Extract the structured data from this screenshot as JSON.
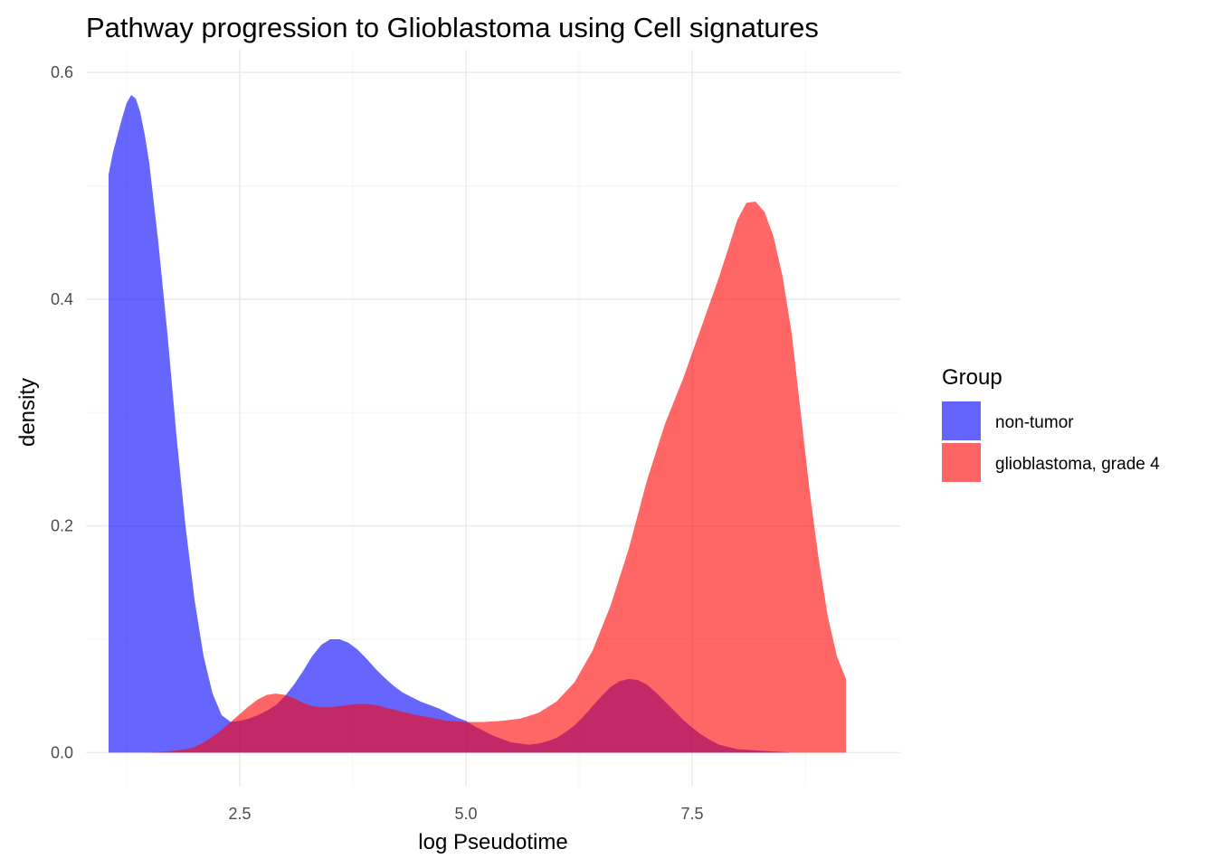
{
  "chart_data": {
    "type": "area",
    "title": "Pathway progression to Glioblastoma using Cell signatures",
    "xlabel": "log Pseudotime",
    "ylabel": "density",
    "xlim": [
      0.8,
      9.8
    ],
    "ylim": [
      -0.03,
      0.62
    ],
    "x_ticks": [
      2.5,
      5.0,
      7.5
    ],
    "x_tick_labels": [
      "2.5",
      "5.0",
      "7.5"
    ],
    "y_ticks": [
      0.0,
      0.2,
      0.4,
      0.6
    ],
    "y_tick_labels": [
      "0.0",
      "0.2",
      "0.4",
      "0.6"
    ],
    "grid": true,
    "legend": {
      "title": "Group",
      "position": "right"
    },
    "series": [
      {
        "name": "non-tumor",
        "color": "#6464FF",
        "x": [
          1.05,
          1.1,
          1.15,
          1.2,
          1.25,
          1.3,
          1.35,
          1.4,
          1.45,
          1.5,
          1.6,
          1.7,
          1.8,
          1.9,
          2.0,
          2.1,
          2.2,
          2.3,
          2.4,
          2.5,
          2.6,
          2.7,
          2.8,
          2.9,
          3.0,
          3.1,
          3.2,
          3.3,
          3.4,
          3.5,
          3.6,
          3.7,
          3.75,
          3.8,
          3.9,
          4.0,
          4.1,
          4.2,
          4.3,
          4.4,
          4.5,
          4.6,
          4.7,
          4.8,
          4.9,
          5.0,
          5.1,
          5.2,
          5.3,
          5.4,
          5.5,
          5.6,
          5.7,
          5.8,
          5.9,
          6.0,
          6.1,
          6.2,
          6.3,
          6.4,
          6.5,
          6.6,
          6.7,
          6.8,
          6.9,
          7.0,
          7.1,
          7.2,
          7.3,
          7.4,
          7.5,
          7.6,
          7.7,
          7.8,
          7.9,
          8.0,
          8.2,
          8.4,
          8.6,
          8.8,
          9.0,
          9.2
        ],
        "values": [
          0.51,
          0.53,
          0.545,
          0.56,
          0.573,
          0.58,
          0.577,
          0.565,
          0.545,
          0.52,
          0.45,
          0.37,
          0.28,
          0.2,
          0.135,
          0.085,
          0.052,
          0.033,
          0.027,
          0.028,
          0.03,
          0.033,
          0.037,
          0.042,
          0.05,
          0.06,
          0.072,
          0.085,
          0.095,
          0.1,
          0.1,
          0.097,
          0.094,
          0.091,
          0.083,
          0.074,
          0.066,
          0.059,
          0.053,
          0.049,
          0.045,
          0.042,
          0.039,
          0.035,
          0.031,
          0.028,
          0.023,
          0.019,
          0.015,
          0.012,
          0.009,
          0.008,
          0.007,
          0.008,
          0.01,
          0.013,
          0.018,
          0.024,
          0.032,
          0.041,
          0.05,
          0.058,
          0.063,
          0.065,
          0.064,
          0.06,
          0.053,
          0.045,
          0.037,
          0.029,
          0.022,
          0.016,
          0.011,
          0.007,
          0.005,
          0.003,
          0.002,
          0.001,
          0.0,
          0.0,
          0.0,
          0.0
        ]
      },
      {
        "name": "glioblastoma, grade 4",
        "color": "#FF6464",
        "x": [
          1.05,
          1.3,
          1.5,
          1.7,
          1.9,
          2.0,
          2.1,
          2.2,
          2.3,
          2.4,
          2.5,
          2.6,
          2.7,
          2.8,
          2.9,
          3.0,
          3.1,
          3.2,
          3.3,
          3.4,
          3.5,
          3.6,
          3.7,
          3.8,
          3.9,
          4.0,
          4.2,
          4.4,
          4.6,
          4.8,
          5.0,
          5.2,
          5.4,
          5.6,
          5.8,
          6.0,
          6.2,
          6.4,
          6.6,
          6.8,
          7.0,
          7.2,
          7.4,
          7.6,
          7.8,
          7.9,
          8.0,
          8.1,
          8.2,
          8.3,
          8.4,
          8.5,
          8.6,
          8.7,
          8.8,
          8.9,
          9.0,
          9.1,
          9.2
        ],
        "values": [
          0.0,
          0.0,
          0.0,
          0.001,
          0.003,
          0.005,
          0.009,
          0.014,
          0.02,
          0.027,
          0.034,
          0.041,
          0.047,
          0.051,
          0.052,
          0.051,
          0.048,
          0.044,
          0.041,
          0.04,
          0.04,
          0.041,
          0.042,
          0.043,
          0.043,
          0.042,
          0.038,
          0.034,
          0.031,
          0.028,
          0.027,
          0.027,
          0.028,
          0.03,
          0.035,
          0.045,
          0.062,
          0.09,
          0.13,
          0.18,
          0.24,
          0.29,
          0.33,
          0.375,
          0.42,
          0.445,
          0.47,
          0.485,
          0.486,
          0.477,
          0.455,
          0.42,
          0.37,
          0.3,
          0.23,
          0.17,
          0.12,
          0.085,
          0.065
        ]
      }
    ]
  }
}
